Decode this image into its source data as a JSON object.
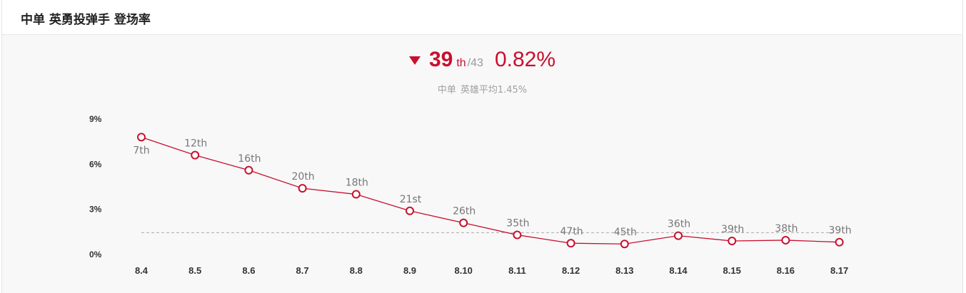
{
  "header": {
    "title": "中单 英勇投弹手 登场率"
  },
  "summary": {
    "trend": "down-triangle-icon",
    "rank": "39",
    "rank_suffix": "th",
    "rank_total": "/43",
    "rate": "0.82%",
    "avg_prefix": "中单",
    "avg_text": "英雄平均1.45%"
  },
  "colors": {
    "accent": "#c8102e",
    "muted": "#999999",
    "avg_line": "#aaaaaa",
    "background": "#f8f8f8"
  },
  "chart_data": {
    "type": "line",
    "x": [
      "8.4",
      "8.5",
      "8.6",
      "8.7",
      "8.8",
      "8.9",
      "8.10",
      "8.11",
      "8.12",
      "8.13",
      "8.14",
      "8.15",
      "8.16",
      "8.17"
    ],
    "values": [
      7.8,
      6.6,
      5.6,
      4.4,
      4.0,
      2.9,
      2.1,
      1.3,
      0.75,
      0.7,
      1.25,
      0.9,
      0.95,
      0.82
    ],
    "data_labels": [
      "7th",
      "12th",
      "16th",
      "20th",
      "18th",
      "21st",
      "26th",
      "35th",
      "47th",
      "45th",
      "36th",
      "39th",
      "38th",
      "39th"
    ],
    "ylim": [
      0,
      9
    ],
    "yticks": [
      0,
      3,
      6,
      9
    ],
    "ytick_labels": [
      "0%",
      "3%",
      "6%",
      "9%"
    ],
    "reference_line": 1.45,
    "grid": false,
    "line_color": "#c8102e"
  }
}
